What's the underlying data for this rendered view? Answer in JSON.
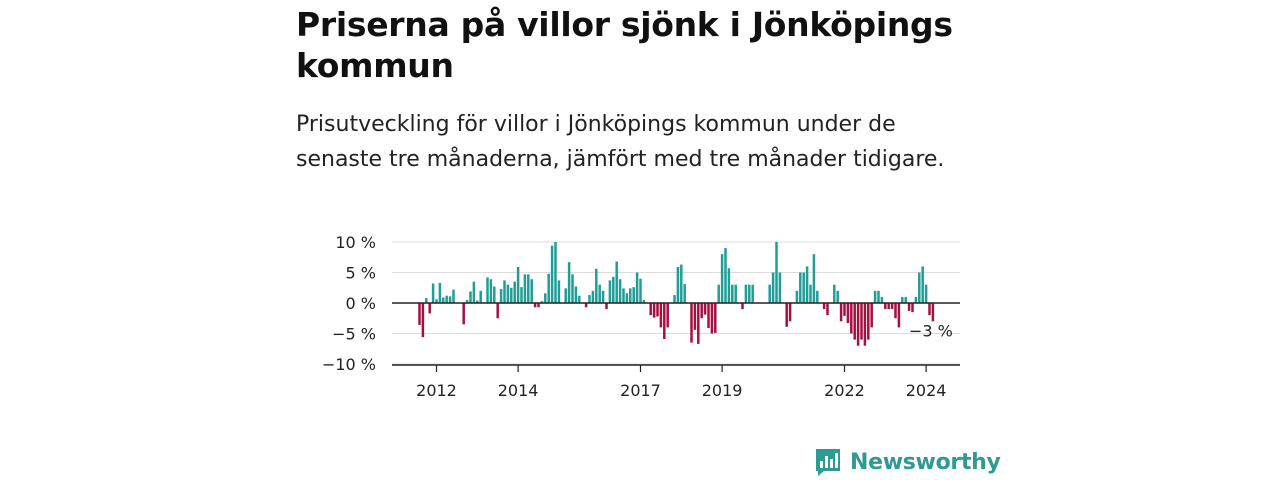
{
  "header": {
    "title": "Priserna på villor sjönk i Jönköpings kommun",
    "subtitle": "Prisutveckling för villor i Jönköpings kommun under de senaste tre månaderna, jämfört med tre månader tidigare."
  },
  "brand": {
    "name": "Newsworthy",
    "icon": "newsworthy-logo-icon",
    "color": "#2f9a92"
  },
  "chart_data": {
    "type": "bar",
    "x_start": "2011-08",
    "x_interval": "month",
    "ylim": [
      -10,
      10
    ],
    "yticks": [
      10,
      5,
      0,
      -5,
      -10
    ],
    "ytick_labels": [
      "10 %",
      "5 %",
      "0 %",
      "−5 %",
      "−10 %"
    ],
    "xtick_labels": [
      "2012",
      "2014",
      "2017",
      "2019",
      "2022",
      "2024"
    ],
    "xtick_dates": [
      "2012-01",
      "2014-01",
      "2017-01",
      "2019-01",
      "2022-01",
      "2024-01"
    ],
    "end_label": "−3 %",
    "grid": true,
    "colors": {
      "positive": "#1f9e96",
      "negative": "#a3123f"
    },
    "values": [
      -3.6,
      -5.6,
      0.8,
      -1.7,
      3.2,
      0.6,
      3.3,
      0.9,
      1.2,
      1.1,
      2.2,
      0.0,
      0.0,
      -3.5,
      0.5,
      1.9,
      3.5,
      0.4,
      2.0,
      0.0,
      4.2,
      3.9,
      2.7,
      -2.5,
      2.3,
      3.7,
      3.0,
      2.5,
      3.5,
      5.9,
      2.6,
      4.7,
      4.7,
      3.9,
      -0.7,
      -0.7,
      0.3,
      1.6,
      4.8,
      9.4,
      10.0,
      3.7,
      0.0,
      2.4,
      6.7,
      4.7,
      2.7,
      1.2,
      0.0,
      -0.7,
      1.3,
      2.0,
      5.6,
      3.0,
      2.0,
      -1.0,
      3.7,
      4.3,
      6.8,
      3.9,
      2.4,
      1.6,
      2.4,
      2.6,
      5.0,
      4.0,
      0.5,
      0.0,
      -2.0,
      -2.4,
      -2.2,
      -4.0,
      -5.9,
      -4.0,
      0.0,
      1.3,
      5.9,
      6.3,
      3.1,
      0.0,
      -6.5,
      -4.4,
      -6.7,
      -2.5,
      -1.9,
      -4.1,
      -5.0,
      -4.9,
      3.0,
      8.0,
      9.0,
      5.7,
      3.0,
      3.0,
      0.0,
      -1.0,
      3.0,
      3.0,
      3.0,
      0.0,
      0.0,
      0.0,
      0.0,
      3.0,
      5.0,
      10.0,
      5.0,
      0.0,
      -3.9,
      -3.0,
      0.0,
      2.0,
      5.0,
      5.0,
      6.0,
      3.0,
      8.0,
      2.0,
      0.0,
      -1.0,
      -2.0,
      0.0,
      3.0,
      2.0,
      -3.0,
      -2.1,
      -3.3,
      -5.0,
      -6.0,
      -7.0,
      -6.0,
      -7.0,
      -6.0,
      -4.0,
      2.0,
      2.0,
      1.0,
      -1.0,
      -1.0,
      -1.0,
      -2.5,
      -4.0,
      1.0,
      1.0,
      -1.3,
      -1.5,
      1.0,
      5.0,
      6.0,
      3.0,
      -2.0,
      -3.0
    ]
  }
}
